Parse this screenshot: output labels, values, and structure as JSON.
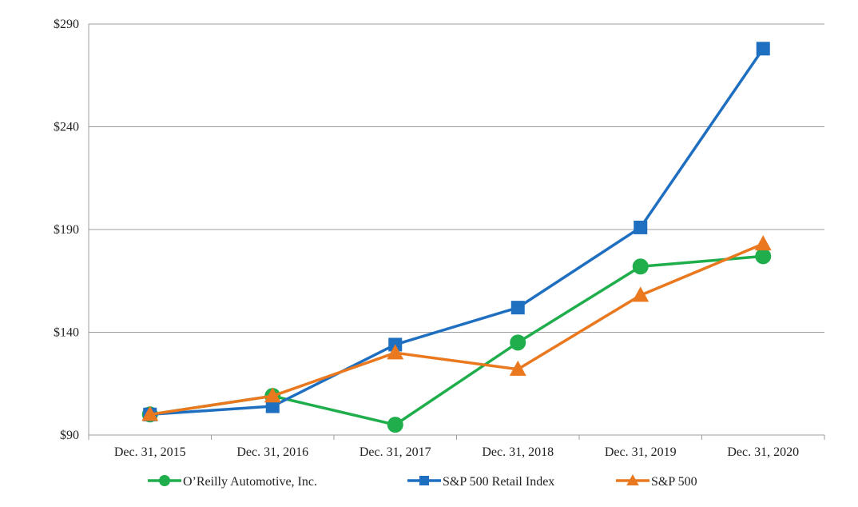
{
  "chart_data": {
    "type": "line",
    "title": "",
    "xlabel": "",
    "ylabel": "",
    "categories": [
      "Dec. 31, 2015",
      "Dec. 31, 2016",
      "Dec. 31, 2017",
      "Dec. 31, 2018",
      "Dec. 31, 2019",
      "Dec. 31, 2020"
    ],
    "ylim": [
      90,
      290
    ],
    "yticks": [
      90,
      140,
      190,
      240,
      290
    ],
    "ytick_labels": [
      "$90",
      "$140",
      "$190",
      "$240",
      "$290"
    ],
    "grid": true,
    "legend_position": "bottom",
    "series": [
      {
        "name": "O’Reilly Automotive, Inc.",
        "values": [
          100,
          109,
          95,
          135,
          172,
          177
        ],
        "color": "#1fae4b",
        "marker": "circle"
      },
      {
        "name": "S&P 500 Retail Index",
        "values": [
          100,
          104,
          134,
          152,
          191,
          278
        ],
        "color": "#1f6fc1",
        "marker": "square"
      },
      {
        "name": "S&P 500",
        "values": [
          100,
          109,
          130,
          122,
          158,
          183
        ],
        "color": "#e9781e",
        "marker": "triangle"
      }
    ]
  }
}
